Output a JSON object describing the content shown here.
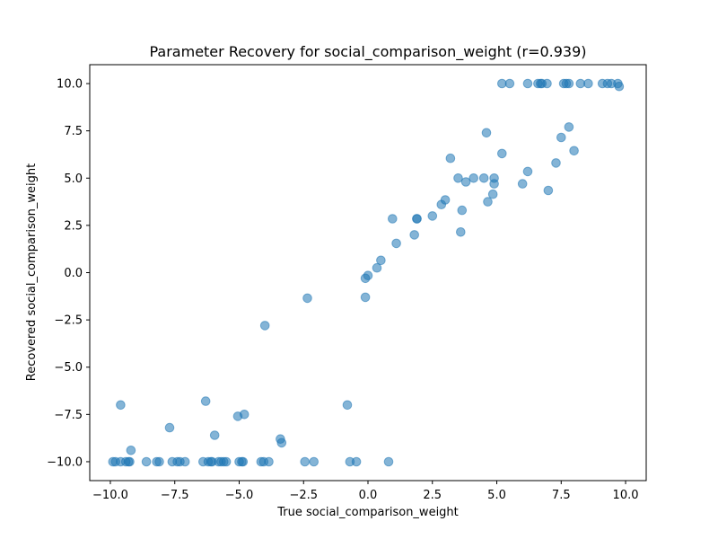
{
  "chart_data": {
    "type": "scatter",
    "title": "Parameter Recovery for social_comparison_weight (r=0.939)",
    "xlabel": "True social_comparison_weight",
    "ylabel": "Recovered social_comparison_weight",
    "xlim": [
      -10.8,
      10.8
    ],
    "ylim": [
      -11.0,
      11.0
    ],
    "xticks": [
      -10.0,
      -7.5,
      -5.0,
      -2.5,
      0.0,
      2.5,
      5.0,
      7.5,
      10.0
    ],
    "xtick_labels": [
      "−10.0",
      "−7.5",
      "−5.0",
      "−2.5",
      "0.0",
      "2.5",
      "5.0",
      "7.5",
      "10.0"
    ],
    "yticks": [
      -10.0,
      -7.5,
      -5.0,
      -2.5,
      0.0,
      2.5,
      5.0,
      7.5,
      10.0
    ],
    "ytick_labels": [
      "−10.0",
      "−7.5",
      "−5.0",
      "−2.5",
      "0.0",
      "2.5",
      "5.0",
      "7.5",
      "10.0"
    ],
    "grid": false,
    "marker_color": "#1f77b4",
    "marker_alpha": 0.55,
    "points": [
      [
        -9.9,
        -10.0
      ],
      [
        -9.8,
        -10.0
      ],
      [
        -9.6,
        -10.0
      ],
      [
        -9.4,
        -10.0
      ],
      [
        -9.3,
        -10.0
      ],
      [
        -9.25,
        -10.0
      ],
      [
        -9.6,
        -7.0
      ],
      [
        -9.2,
        -9.4
      ],
      [
        -8.6,
        -10.0
      ],
      [
        -8.2,
        -10.0
      ],
      [
        -8.1,
        -10.0
      ],
      [
        -7.7,
        -8.2
      ],
      [
        -7.6,
        -10.0
      ],
      [
        -7.4,
        -10.0
      ],
      [
        -7.3,
        -10.0
      ],
      [
        -7.1,
        -10.0
      ],
      [
        -6.4,
        -10.0
      ],
      [
        -6.2,
        -10.0
      ],
      [
        -6.1,
        -10.0
      ],
      [
        -6.05,
        -10.0
      ],
      [
        -6.3,
        -6.8
      ],
      [
        -5.95,
        -8.6
      ],
      [
        -5.8,
        -10.0
      ],
      [
        -5.7,
        -10.0
      ],
      [
        -5.6,
        -10.0
      ],
      [
        -5.5,
        -10.0
      ],
      [
        -5.0,
        -10.0
      ],
      [
        -4.9,
        -10.0
      ],
      [
        -4.85,
        -10.0
      ],
      [
        -5.05,
        -7.6
      ],
      [
        -4.8,
        -7.5
      ],
      [
        -4.15,
        -10.0
      ],
      [
        -4.05,
        -10.0
      ],
      [
        -3.85,
        -10.0
      ],
      [
        -4.0,
        -2.8
      ],
      [
        -3.4,
        -8.8
      ],
      [
        -3.35,
        -9.0
      ],
      [
        -2.45,
        -10.0
      ],
      [
        -2.1,
        -10.0
      ],
      [
        -2.35,
        -1.35
      ],
      [
        -0.8,
        -7.0
      ],
      [
        -0.7,
        -10.0
      ],
      [
        -0.45,
        -10.0
      ],
      [
        0.8,
        -10.0
      ],
      [
        -0.1,
        -1.3
      ],
      [
        -0.1,
        -0.3
      ],
      [
        0.0,
        -0.15
      ],
      [
        0.35,
        0.25
      ],
      [
        0.5,
        0.65
      ],
      [
        0.95,
        2.85
      ],
      [
        1.1,
        1.55
      ],
      [
        1.8,
        2.0
      ],
      [
        1.9,
        2.85
      ],
      [
        1.9,
        2.85
      ],
      [
        2.5,
        3.0
      ],
      [
        2.85,
        3.6
      ],
      [
        3.0,
        3.85
      ],
      [
        3.2,
        6.05
      ],
      [
        3.5,
        5.0
      ],
      [
        3.6,
        2.15
      ],
      [
        3.65,
        3.3
      ],
      [
        3.8,
        4.8
      ],
      [
        4.1,
        5.0
      ],
      [
        4.5,
        5.0
      ],
      [
        4.6,
        7.4
      ],
      [
        4.65,
        3.75
      ],
      [
        4.9,
        4.7
      ],
      [
        4.9,
        5.0
      ],
      [
        4.85,
        4.15
      ],
      [
        5.2,
        6.3
      ],
      [
        5.2,
        10.0
      ],
      [
        5.5,
        10.0
      ],
      [
        6.0,
        4.7
      ],
      [
        6.2,
        5.35
      ],
      [
        6.2,
        10.0
      ],
      [
        6.6,
        10.0
      ],
      [
        6.7,
        10.0
      ],
      [
        6.75,
        10.0
      ],
      [
        6.95,
        10.0
      ],
      [
        7.0,
        4.35
      ],
      [
        7.3,
        5.8
      ],
      [
        7.5,
        7.15
      ],
      [
        7.6,
        10.0
      ],
      [
        7.7,
        10.0
      ],
      [
        7.8,
        10.0
      ],
      [
        7.8,
        7.7
      ],
      [
        8.0,
        6.45
      ],
      [
        8.25,
        10.0
      ],
      [
        8.55,
        10.0
      ],
      [
        9.1,
        10.0
      ],
      [
        9.3,
        10.0
      ],
      [
        9.45,
        10.0
      ],
      [
        9.7,
        10.0
      ],
      [
        9.75,
        9.85
      ]
    ]
  }
}
